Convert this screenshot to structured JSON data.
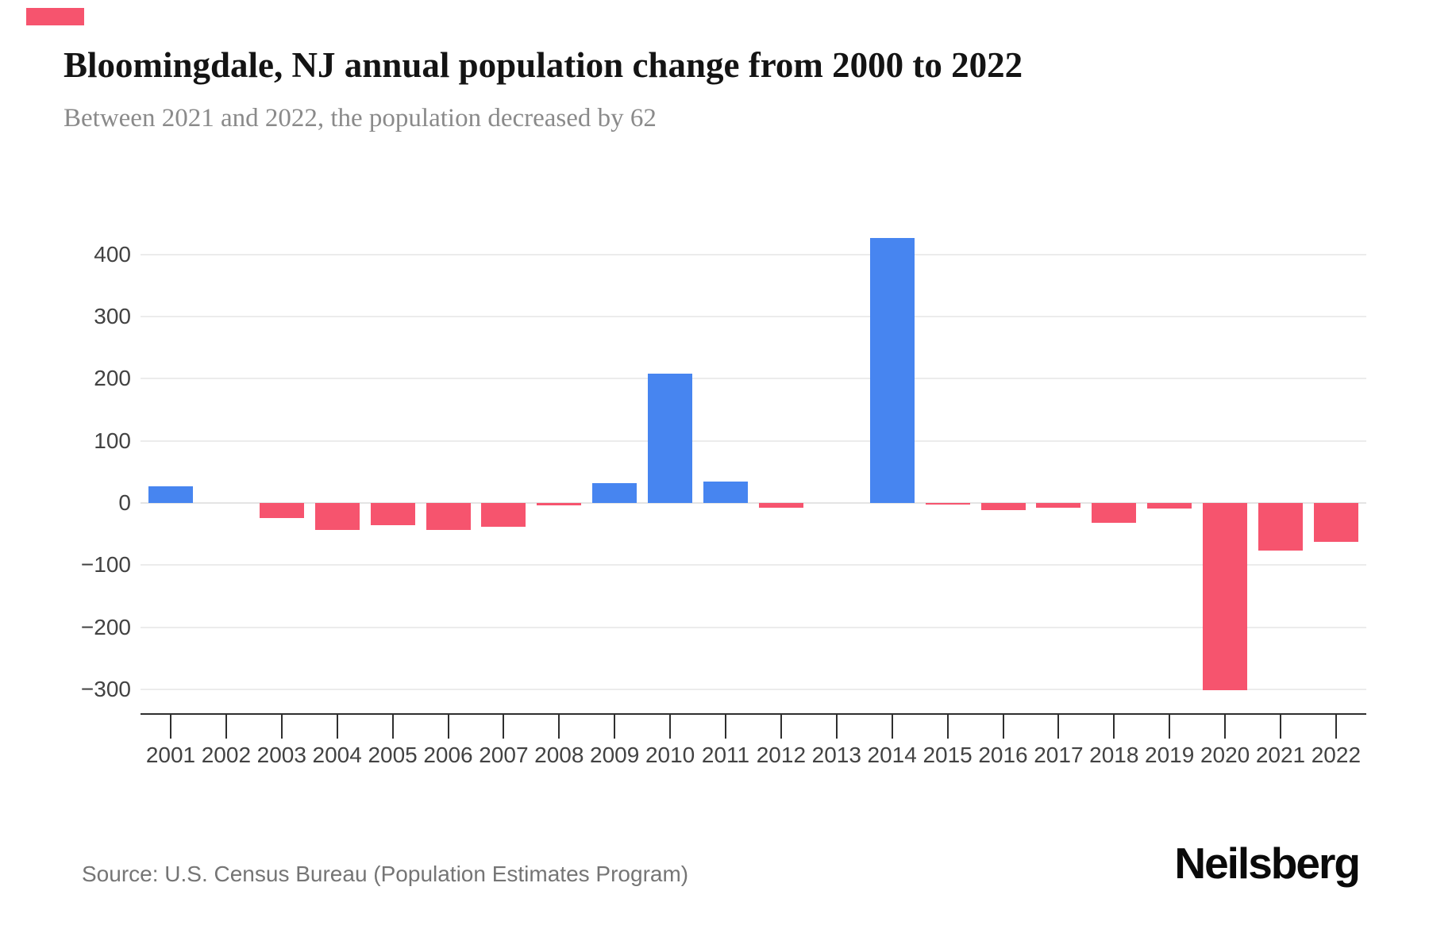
{
  "header": {
    "title": "Bloomingdale, NJ annual population change from 2000 to 2022",
    "subtitle": "Between 2021 and 2022, the population decreased by 62"
  },
  "footer": {
    "source": "Source: U.S. Census Bureau (Population Estimates Program)",
    "logo": "Neilsberg"
  },
  "colors": {
    "accent": "#f6546e",
    "positive_bar": "#4785f0",
    "negative_bar": "#f6546e",
    "gridline": "#ececec",
    "axis": "#2f2f2f",
    "tick_label": "#424242",
    "subtitle_text": "#8a8a8a",
    "source_text": "#757575"
  },
  "chart_data": {
    "type": "bar",
    "title": "Bloomingdale, NJ annual population change from 2000 to 2022",
    "subtitle": "Between 2021 and 2022, the population decreased by 62",
    "xlabel": "",
    "ylabel": "",
    "categories": [
      "2001",
      "2002",
      "2003",
      "2004",
      "2005",
      "2006",
      "2007",
      "2008",
      "2009",
      "2010",
      "2011",
      "2012",
      "2013",
      "2014",
      "2015",
      "2016",
      "2017",
      "2018",
      "2019",
      "2020",
      "2021",
      "2022"
    ],
    "values": [
      27,
      0,
      -24,
      -43,
      -36,
      -43,
      -38,
      -4,
      32,
      208,
      35,
      -8,
      0,
      426,
      -3,
      -12,
      -8,
      -32,
      -9,
      -301,
      -77,
      -62
    ],
    "yticks": [
      400,
      300,
      200,
      100,
      0,
      -100,
      -200,
      -300
    ],
    "ylim": [
      -340,
      440
    ],
    "grid": true,
    "legend_position": "none",
    "positive_color": "#4785f0",
    "negative_color": "#f6546e"
  }
}
